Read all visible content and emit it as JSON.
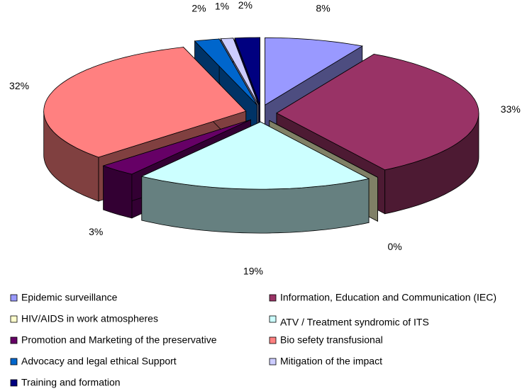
{
  "chart_data": {
    "type": "pie3d",
    "categories": [
      "Epidemic surveillance",
      "Information, Education and Communication (IEC)",
      "HIV/AIDS in work atmospheres",
      "ATV / Treatment syndromic of ITS",
      "Promotion and Marketing of the preservative",
      "Bio sefety transfusional",
      "Advocacy and legal ethical Support",
      "Mitigation of the impact",
      "Training and formation"
    ],
    "values": [
      8,
      33,
      0,
      19,
      3,
      32,
      2,
      1,
      2
    ],
    "value_labels": [
      "8%",
      "33%",
      "0%",
      "19%",
      "3%",
      "32%",
      "2%",
      "1%",
      "2%"
    ],
    "colors": [
      "#9999ff",
      "#993366",
      "#ffffcc",
      "#ccffff",
      "#660066",
      "#ff8080",
      "#0066cc",
      "#ccccff",
      "#000080"
    ],
    "legend": "bottom"
  }
}
